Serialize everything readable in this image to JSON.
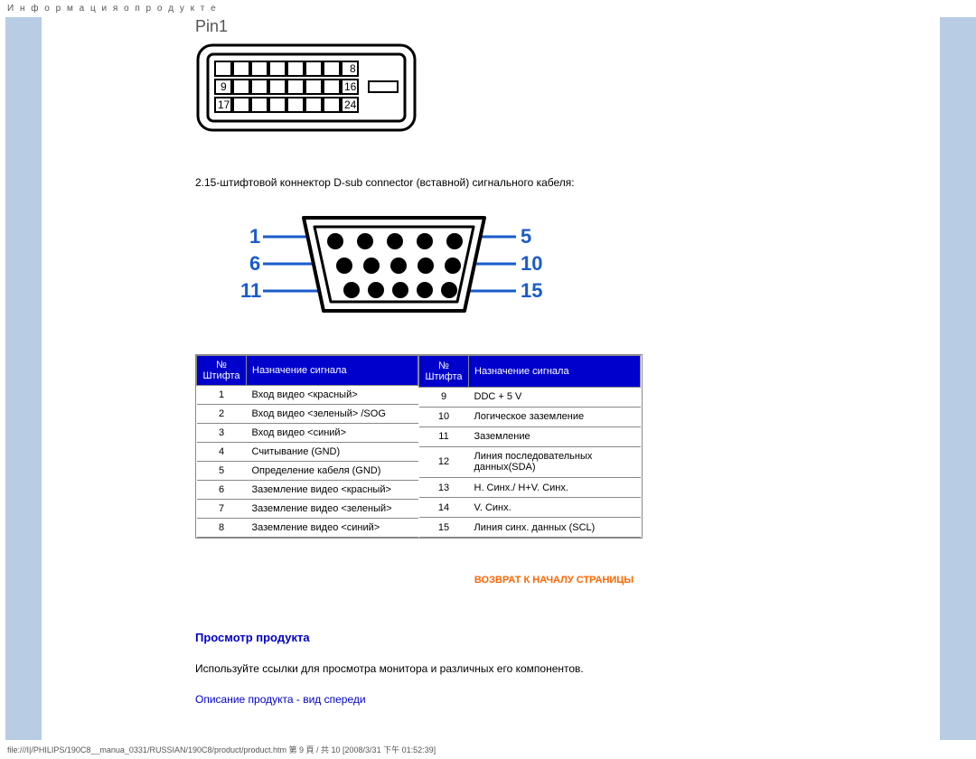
{
  "header": "И н ф о р м а ц и я о  п р о д у к т е",
  "pin1_label": "Pin1",
  "dvi": {
    "labels": [
      "8",
      "9",
      "16",
      "17",
      "24"
    ]
  },
  "desc": "2.15-штифтовой коннектор D-sub connector (вставной) сигнального кабеля:",
  "vga": {
    "left_nums": [
      "1",
      "6",
      "11"
    ],
    "right_nums": [
      "5",
      "10",
      "15"
    ]
  },
  "table": {
    "headers": {
      "num1": "№ Штифта",
      "sig": "Назначение сигнала",
      "num2": "№ Штифта"
    },
    "left": [
      {
        "n": "1",
        "s": "Вход видео <красный>"
      },
      {
        "n": "2",
        "s": "Вход видео <зеленый> /SOG"
      },
      {
        "n": "3",
        "s": "Вход видео <синий>"
      },
      {
        "n": "4",
        "s": "Считывание (GND)"
      },
      {
        "n": "5",
        "s": "Определение кабеля (GND)"
      },
      {
        "n": "6",
        "s": "Заземление видео <красный>"
      },
      {
        "n": "7",
        "s": "Заземление видео <зеленый>"
      },
      {
        "n": "8",
        "s": "Заземление видео <синий>"
      }
    ],
    "right": [
      {
        "n": "9",
        "s": "DDC + 5 V"
      },
      {
        "n": "10",
        "s": "Логическое заземление"
      },
      {
        "n": "11",
        "s": "Заземление"
      },
      {
        "n": "12",
        "s": "Линия последовательных данных(SDA)"
      },
      {
        "n": "13",
        "s": "H. Синх./ H+V. Синх."
      },
      {
        "n": "14",
        "s": "V. Синх."
      },
      {
        "n": "15",
        "s": "Линия синх. данных (SCL)"
      }
    ]
  },
  "return_link": "ВОЗВРАТ К НАЧАЛУ СТРАНИЦЫ",
  "section_title": "Просмотр продукта",
  "body_text": "Используйте ссылки для просмотра монитора и различных его компонентов.",
  "front_link": "Описание продукта - вид спереди",
  "footer": "file:///I|/PHILIPS/190C8__manua_0331/RUSSIAN/190C8/product/product.htm 第 9 頁 / 共 10  [2008/3/31 下午 01:52:39]",
  "colors": {
    "sidebar": "#b8cce4",
    "table_header_bg": "#0000cc",
    "link_blue": "#0000cc",
    "link_orange": "#ff6600",
    "vga_num": "#1a5bcc"
  }
}
